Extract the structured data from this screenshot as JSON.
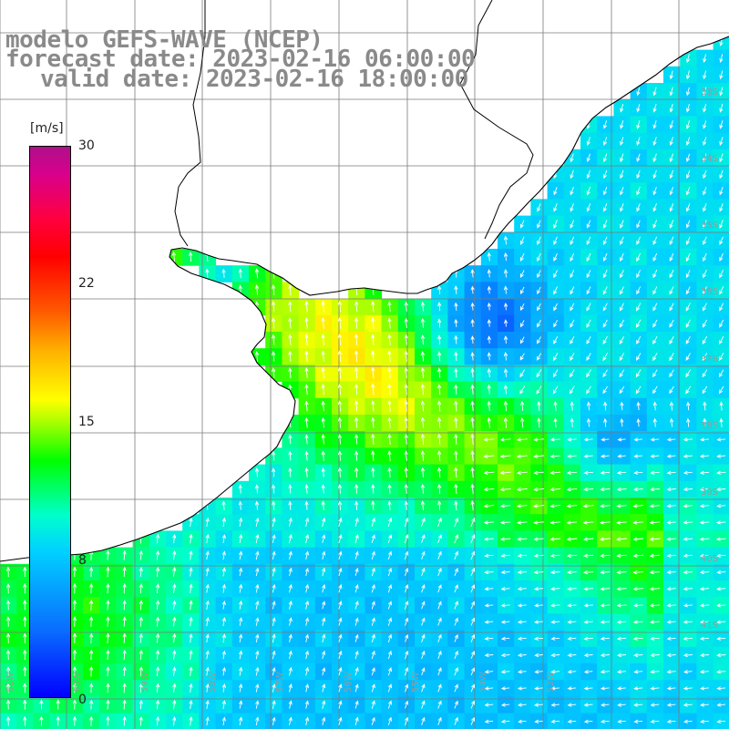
{
  "title": {
    "model": "modelo GEFS-WAVE (NCEP)",
    "forecast": "forecast date: 2023-02-16 06:00:00",
    "valid": "valid date: 2023-02-16 18:00:00"
  },
  "colorbar": {
    "unit": "[m/s]",
    "ticks": [
      "30",
      "22",
      "15",
      "8",
      "0"
    ],
    "min": 0,
    "max": 30,
    "colors": [
      "#0000ff",
      "#00d2ff",
      "#00ff00",
      "#ffff00",
      "#ff0000",
      "#b0108a"
    ]
  },
  "map": {
    "lat_labels": [
      "33S",
      "34S",
      "35S",
      "36S",
      "37S",
      "38S",
      "39S",
      "40S",
      "41S"
    ],
    "lon_labels": [
      "61W",
      "60W",
      "59W",
      "58W",
      "57W",
      "56W",
      "55W",
      "54W",
      "53W"
    ],
    "lon_range": [
      -62,
      -52
    ],
    "lat_range": [
      -42,
      -31
    ],
    "colors": {
      "coastline": "#000000",
      "grid": "#7a7a7a",
      "arrows": "#ffffff",
      "land": "#ffffff"
    }
  }
}
